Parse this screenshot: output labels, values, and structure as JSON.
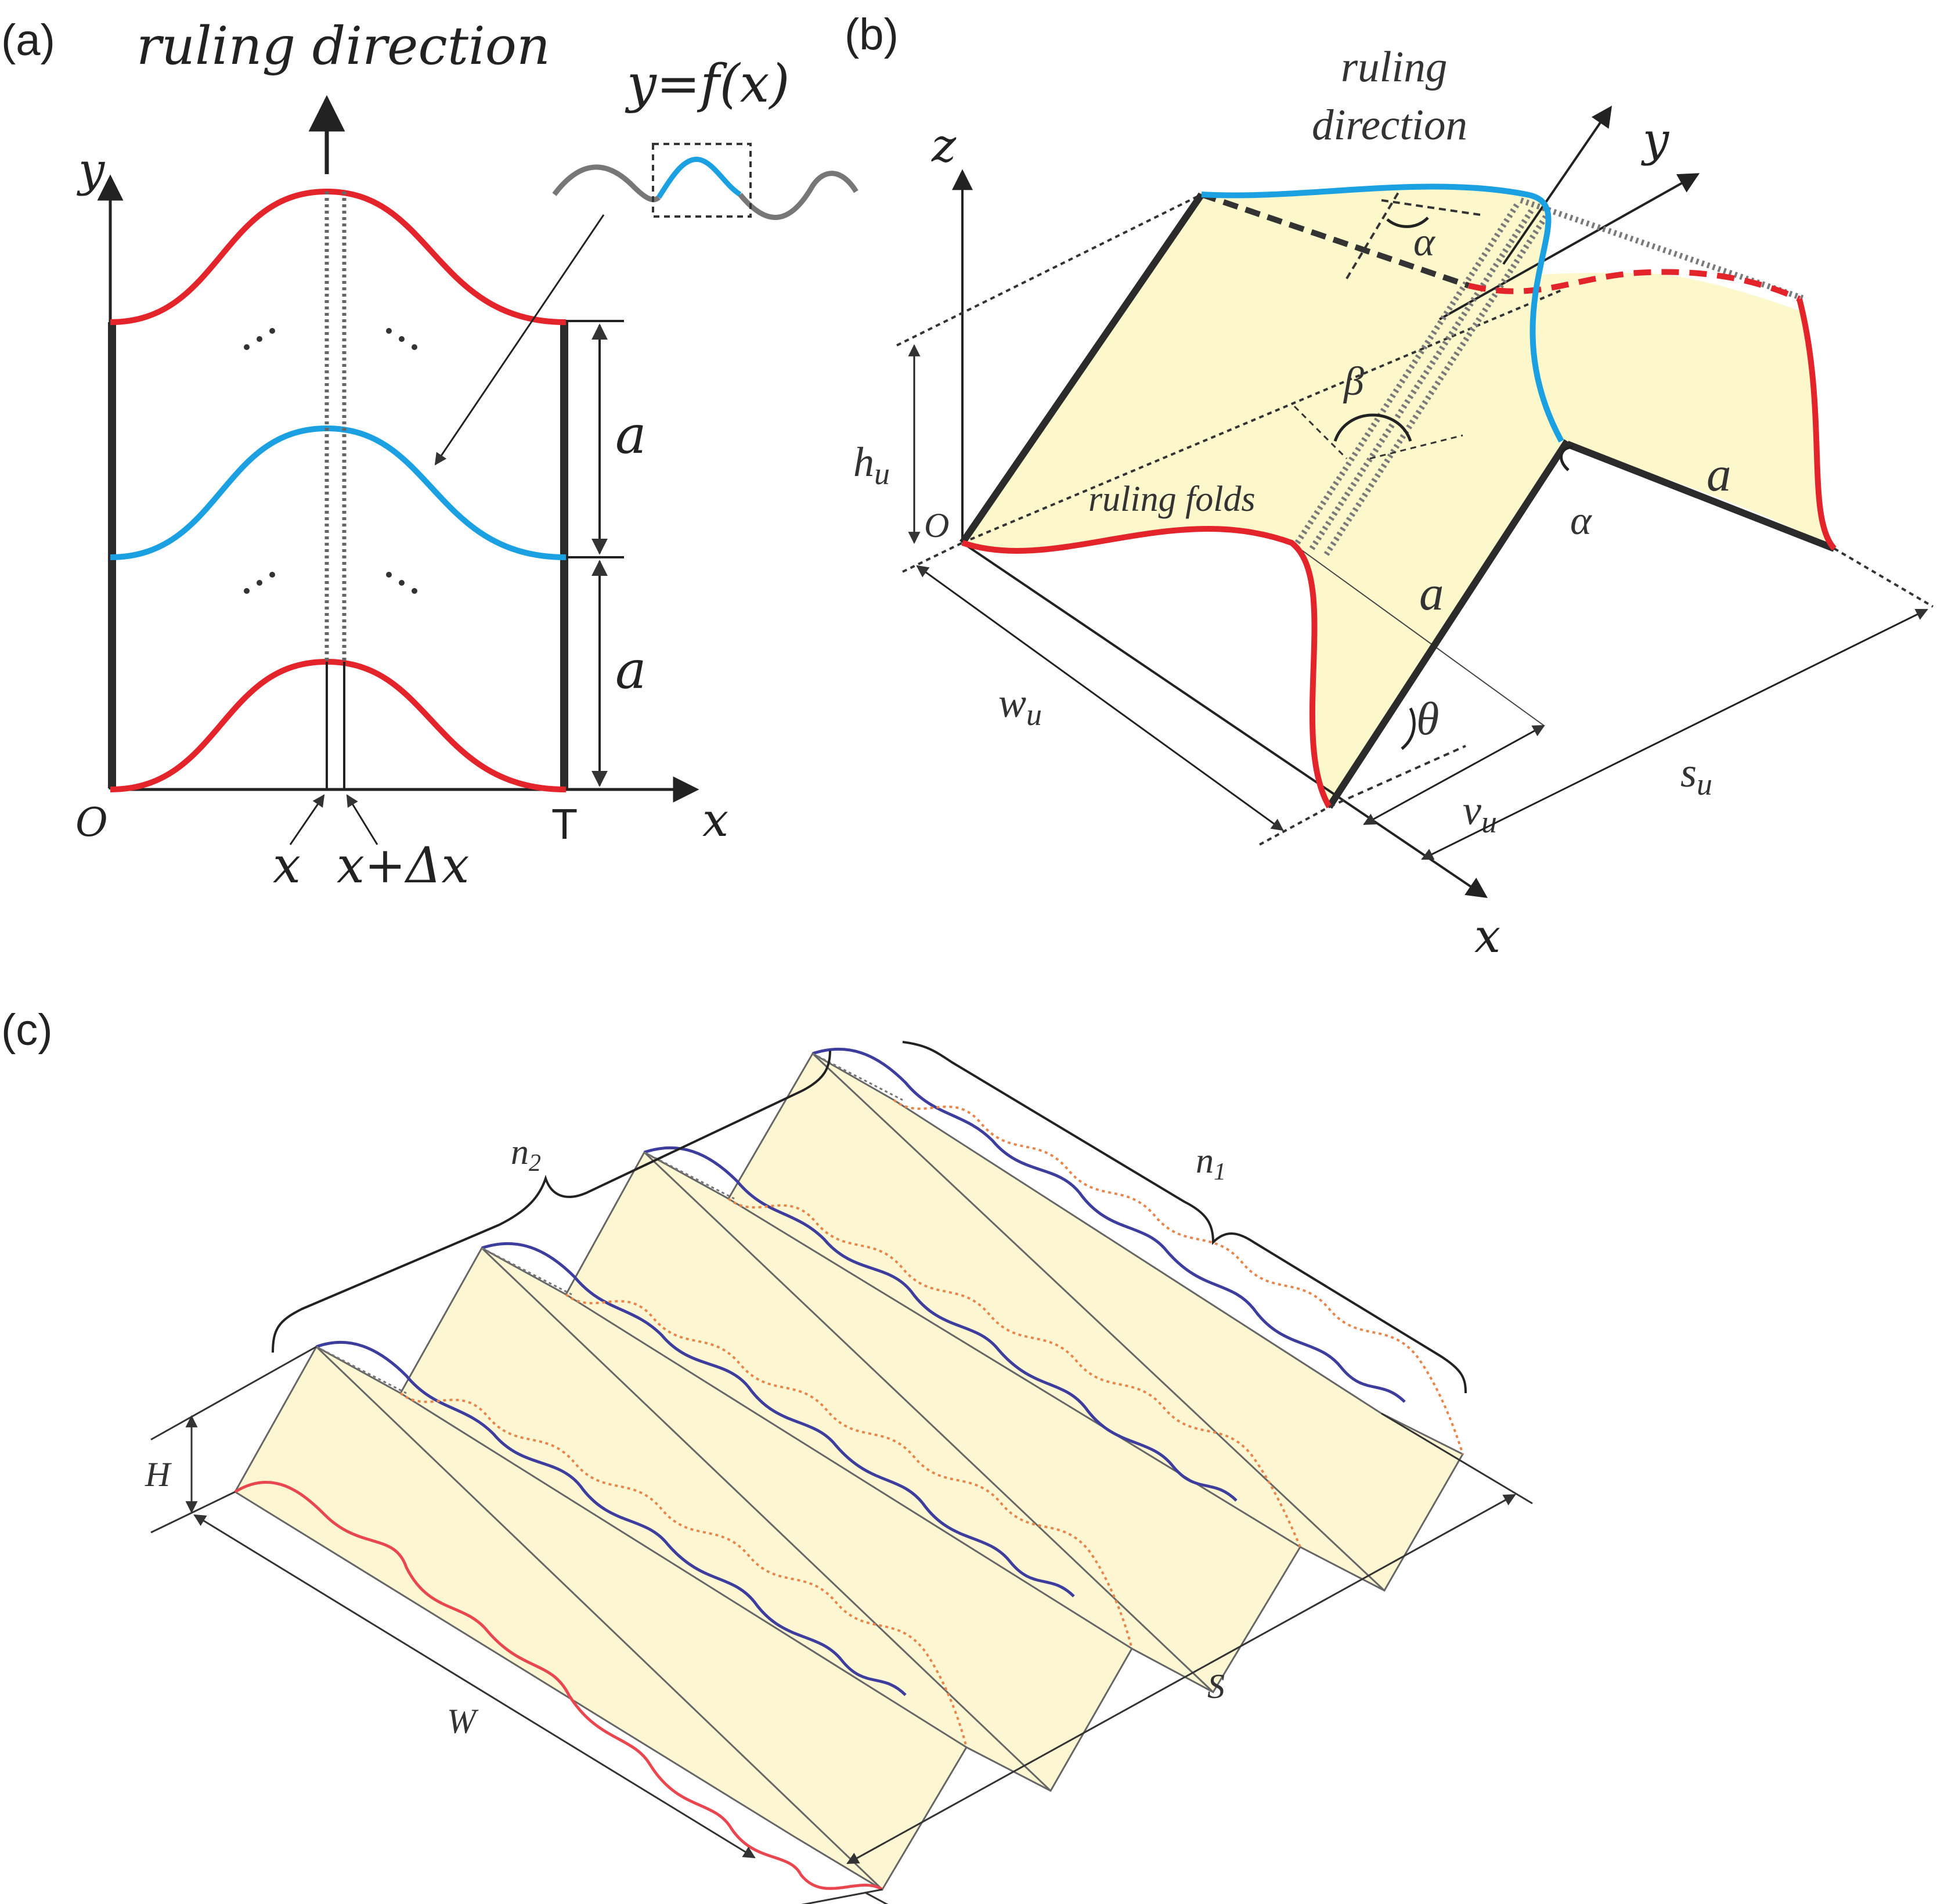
{
  "panels": {
    "a": {
      "label": "(a)",
      "ruling_direction": "ruling direction",
      "function_label": "y=f(x)",
      "axis_y": "y",
      "axis_x": "x",
      "origin": "O",
      "period_end": "T",
      "tick_x": "x",
      "tick_x_plus": "x+Δx",
      "dim_upper": "a",
      "dim_lower": "a",
      "colors": {
        "boundary": "#e3242b",
        "middle": "#1ba0e2",
        "preview": "#777777"
      }
    },
    "b": {
      "label": "(b)",
      "ruling_direction_line1": "ruling",
      "ruling_direction_line2": "direction",
      "axis_z": "z",
      "axis_y": "y",
      "axis_x": "x",
      "origin": "O",
      "alpha_top": "α",
      "alpha_bottom": "α",
      "beta": "β",
      "theta": "θ",
      "ruling_folds": "ruling folds",
      "edge_a_right": "a",
      "edge_a_middle": "a",
      "h_u": "h",
      "w_u": "w",
      "v_u": "v",
      "s_u": "s",
      "subscript": "u",
      "colors": {
        "surface": "#fcf8cc",
        "front_curve": "#e3242b",
        "top_curve": "#1ba0e2"
      }
    },
    "c": {
      "label": "(c)",
      "n2": "n",
      "n2_sub": "2",
      "n1": "n",
      "n1_sub": "1",
      "H": "H",
      "W": "W",
      "S": "S",
      "colors": {
        "surface": "#fdf6d2",
        "front_curve": "#e8474f",
        "top_curve": "#3d3d9e"
      }
    }
  }
}
